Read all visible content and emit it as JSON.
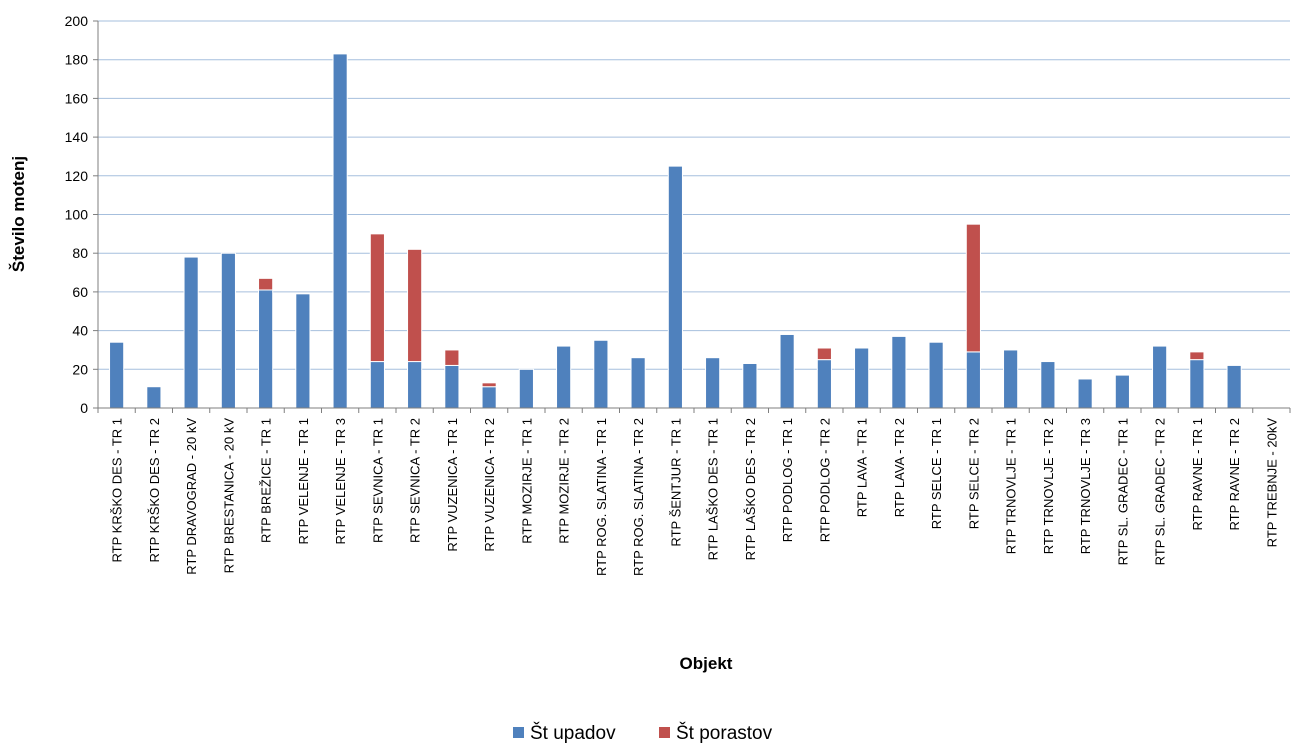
{
  "chart_data": {
    "type": "bar",
    "stacked": true,
    "categories": [
      "RTP KRŠKO DES - TR 1",
      "RTP KRŠKO DES - TR 2",
      "RTP DRAVOGRAD - 20 kV",
      "RTP BRESTANICA - 20 kV",
      "RTP BREŽICE - TR 1",
      "RTP VELENJE - TR 1",
      "RTP VELENJE - TR 3",
      "RTP SEVNICA - TR 1",
      "RTP SEVNICA - TR 2",
      "RTP VUZENICA - TR 1",
      "RTP VUZENICA - TR 2",
      "RTP MOZIRJE - TR 1",
      "RTP MOZIRJE - TR 2",
      "RTP ROG. SLATINA - TR 1",
      "RTP ROG. SLATINA - TR 2",
      "RTP ŠENTJUR - TR 1",
      "RTP LAŠKO DES - TR 1",
      "RTP LAŠKO DES - TR 2",
      "RTP PODLOG - TR 1",
      "RTP PODLOG - TR 2",
      "RTP LAVA - TR 1",
      "RTP LAVA - TR 2",
      "RTP SELCE - TR 1",
      "RTP SELCE - TR 2",
      "RTP TRNOVLJE - TR 1",
      "RTP TRNOVLJE - TR 2",
      "RTP TRNOVLJE - TR 3",
      "RTP SL. GRADEC - TR 1",
      "RTP SL. GRADEC - TR 2",
      "RTP RAVNE - TR 1",
      "RTP RAVNE - TR 2",
      "RTP TREBNJE - 20kV"
    ],
    "series": [
      {
        "name": "Št upadov",
        "color": "#4F81BD",
        "values": [
          34,
          11,
          78,
          80,
          61,
          59,
          183,
          24,
          24,
          22,
          11,
          20,
          32,
          35,
          26,
          125,
          26,
          23,
          38,
          25,
          31,
          37,
          34,
          29,
          30,
          24,
          15,
          17,
          32,
          25,
          22,
          0
        ]
      },
      {
        "name": "Št porastov",
        "color": "#C0504D",
        "values": [
          0,
          0,
          0,
          0,
          6,
          0,
          0,
          66,
          58,
          8,
          2,
          0,
          0,
          0,
          0,
          0,
          0,
          0,
          0,
          6,
          0,
          0,
          0,
          66,
          0,
          0,
          0,
          0,
          0,
          4,
          0,
          0
        ]
      }
    ],
    "xlabel": "Objekt",
    "ylabel": "Število motenj",
    "ylim": [
      0,
      200
    ],
    "yticks": [
      "0",
      "20",
      "40",
      "60",
      "80",
      "100",
      "120",
      "140",
      "160",
      "180",
      "200"
    ],
    "grid": true,
    "legend": "bottom",
    "colors": {
      "gridline": "#A6BFDD",
      "axis": "#7F7F7F"
    }
  }
}
